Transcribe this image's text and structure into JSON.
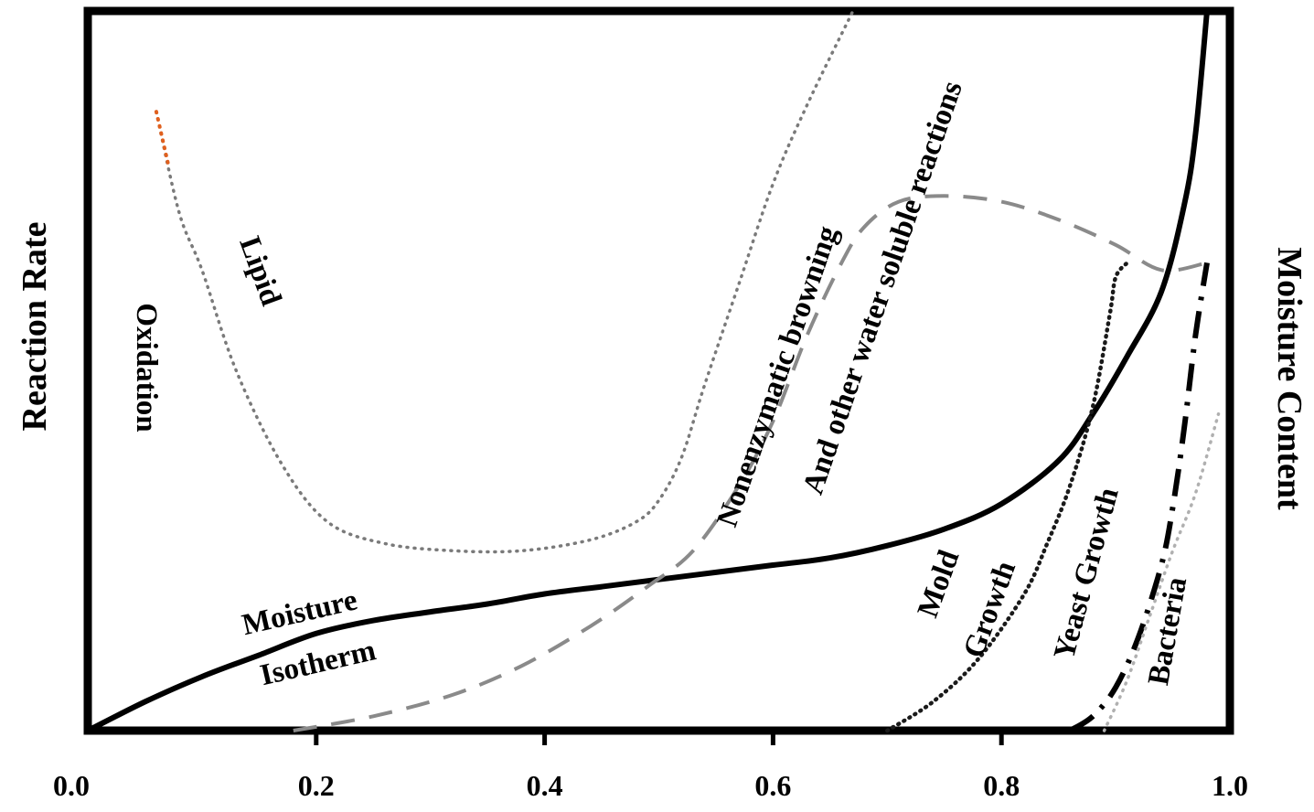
{
  "chart_data": {
    "type": "line",
    "title": "",
    "xlabel": "",
    "ylabel": "Reaction Rate",
    "y2label": "Moisture Content",
    "xlim": [
      0.0,
      1.0
    ],
    "ylim": [
      0,
      100
    ],
    "x_ticks": [
      "0.0",
      "0.2",
      "0.4",
      "0.6",
      "0.8",
      "1.0"
    ],
    "y_ticks_shown": false,
    "grid": false,
    "legend": "none",
    "labels": {
      "lipid": "Lipid",
      "oxidation": "Oxidation",
      "nonenzymatic": "Nonenzymatic browning",
      "water_soluble": "And other water soluble reactions",
      "moisture": "Moisture",
      "isotherm": "Isotherm",
      "mold": "Mold",
      "mold_growth": "Growth",
      "yeast": "Yeast Growth",
      "bacteria": "Bacteria"
    },
    "colors": {
      "axes": "#000000",
      "moisture_isotherm": "#000000",
      "lipid_oxidation": "#7a7a7a",
      "lipid_oxidation_highlight": "#e0601e",
      "nonenzymatic_browning": "#8a8a8a",
      "mold_growth": "#1a1a1a",
      "yeast_growth": "#000000",
      "bacteria": "#b0b0b0"
    },
    "series": [
      {
        "key": "moisture_isotherm",
        "style": "solid",
        "points": [
          [
            0.0,
            0
          ],
          [
            0.05,
            4
          ],
          [
            0.1,
            7.5
          ],
          [
            0.15,
            10.5
          ],
          [
            0.2,
            13.5
          ],
          [
            0.25,
            15.3
          ],
          [
            0.3,
            16.5
          ],
          [
            0.35,
            17.6
          ],
          [
            0.4,
            19
          ],
          [
            0.45,
            20
          ],
          [
            0.5,
            21
          ],
          [
            0.55,
            22
          ],
          [
            0.6,
            23
          ],
          [
            0.65,
            24
          ],
          [
            0.7,
            25.7
          ],
          [
            0.75,
            28
          ],
          [
            0.8,
            31.5
          ],
          [
            0.85,
            37.5
          ],
          [
            0.88,
            44
          ],
          [
            0.91,
            52
          ],
          [
            0.94,
            61
          ],
          [
            0.96,
            73
          ],
          [
            0.97,
            83
          ],
          [
            0.98,
            100
          ]
        ]
      },
      {
        "key": "lipid_oxidation",
        "style": "dotted",
        "points": [
          [
            0.06,
            86
          ],
          [
            0.08,
            72
          ],
          [
            0.1,
            64
          ],
          [
            0.13,
            50
          ],
          [
            0.17,
            37
          ],
          [
            0.21,
            29
          ],
          [
            0.26,
            26
          ],
          [
            0.32,
            25
          ],
          [
            0.38,
            25
          ],
          [
            0.44,
            26.5
          ],
          [
            0.48,
            29
          ],
          [
            0.5,
            32
          ],
          [
            0.52,
            38
          ],
          [
            0.54,
            48
          ],
          [
            0.57,
            62
          ],
          [
            0.6,
            76
          ],
          [
            0.63,
            87
          ],
          [
            0.67,
            100
          ]
        ]
      },
      {
        "key": "nonenzymatic_browning",
        "style": "dashed",
        "points": [
          [
            0.18,
            0
          ],
          [
            0.25,
            2
          ],
          [
            0.32,
            5
          ],
          [
            0.38,
            9
          ],
          [
            0.44,
            14.5
          ],
          [
            0.49,
            20
          ],
          [
            0.53,
            25
          ],
          [
            0.57,
            34
          ],
          [
            0.6,
            43
          ],
          [
            0.63,
            55
          ],
          [
            0.66,
            65
          ],
          [
            0.68,
            70
          ],
          [
            0.71,
            73.5
          ],
          [
            0.75,
            74.3
          ],
          [
            0.8,
            73.5
          ],
          [
            0.85,
            71
          ],
          [
            0.9,
            67.5
          ],
          [
            0.94,
            64
          ],
          [
            0.98,
            65
          ]
        ]
      },
      {
        "key": "mold_growth",
        "style": "dotted",
        "points": [
          [
            0.7,
            0
          ],
          [
            0.74,
            4
          ],
          [
            0.78,
            10
          ],
          [
            0.82,
            19
          ],
          [
            0.84,
            26
          ],
          [
            0.86,
            34
          ],
          [
            0.88,
            45
          ],
          [
            0.895,
            58
          ],
          [
            0.9,
            63
          ],
          [
            0.91,
            65
          ]
        ]
      },
      {
        "key": "yeast_growth",
        "style": "dashdot",
        "points": [
          [
            0.86,
            0
          ],
          [
            0.88,
            2
          ],
          [
            0.9,
            6
          ],
          [
            0.92,
            13
          ],
          [
            0.94,
            23
          ],
          [
            0.95,
            31
          ],
          [
            0.96,
            42
          ],
          [
            0.97,
            55
          ],
          [
            0.98,
            65
          ]
        ]
      },
      {
        "key": "bacteria",
        "style": "dotted",
        "points": [
          [
            0.89,
            0
          ],
          [
            0.91,
            7
          ],
          [
            0.93,
            16
          ],
          [
            0.95,
            25
          ],
          [
            0.97,
            33
          ],
          [
            0.99,
            44
          ]
        ]
      }
    ]
  }
}
